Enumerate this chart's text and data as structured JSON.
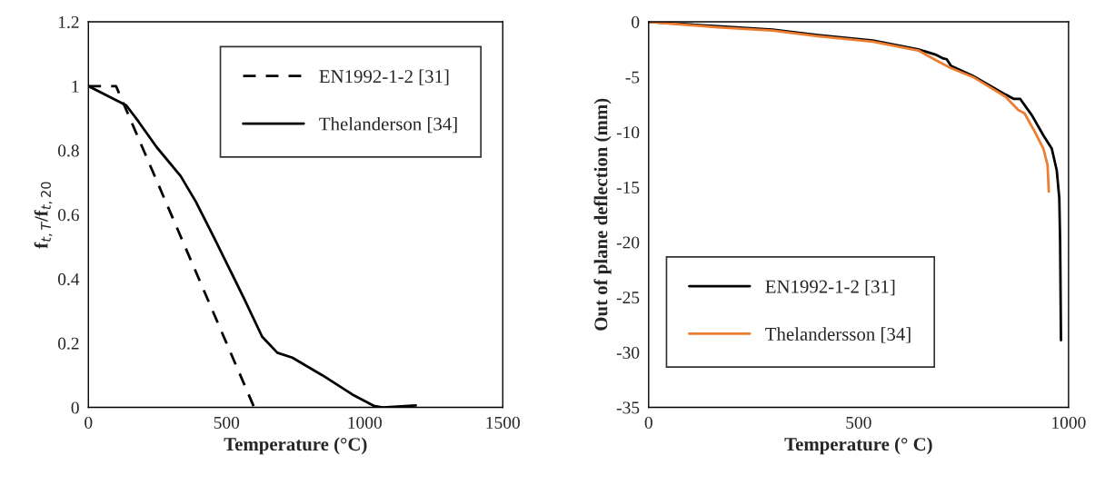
{
  "chart_data": [
    {
      "type": "line",
      "xlabel": "Temperature (°C)",
      "ylabel": "f$_{t,T}$/f$_{t,20}$",
      "xlim": [
        0,
        1500
      ],
      "xticks": [
        0,
        500,
        1000,
        1500
      ],
      "ylim": [
        0,
        1.2
      ],
      "yticks": [
        0,
        0.2,
        0.4,
        0.6,
        0.8,
        1,
        1.2
      ],
      "legend": "top right",
      "grid": false,
      "series": [
        {
          "name": "EN1992-1-2 [31]",
          "color": "#000000",
          "line_style": "dashed",
          "x": [
            0,
            100,
            600
          ],
          "values": [
            1,
            1,
            0
          ]
        },
        {
          "name": "Thelanderson [34]",
          "color": "#000000",
          "line_style": "solid",
          "x": [
            0,
            137,
            181,
            247,
            334,
            389,
            454,
            563,
            629,
            684,
            738,
            847,
            956,
            1033,
            1065,
            1185
          ],
          "values": [
            1,
            0.94,
            0.89,
            0.81,
            0.72,
            0.64,
            0.53,
            0.34,
            0.22,
            0.17,
            0.155,
            0.1,
            0.04,
            0.005,
            0,
            0.006
          ]
        }
      ]
    },
    {
      "type": "line",
      "xlabel": "Temperature (° C)",
      "ylabel": "Out of plane deflection (mm)",
      "xlim": [
        0,
        1000
      ],
      "xticks": [
        0,
        500,
        1000
      ],
      "ylim": [
        -35,
        0
      ],
      "yticks": [
        -35,
        -30,
        -25,
        -20,
        -15,
        -10,
        -5,
        0
      ],
      "legend": "bottom left",
      "grid": false,
      "series": [
        {
          "name": "EN1992-1-2 [31]",
          "color": "#000000",
          "line_style": "solid",
          "x": [
            0,
            165,
            295,
            403,
            534,
            642,
            685,
            700,
            710,
            720,
            772,
            850,
            870,
            885,
            913,
            940,
            960,
            972,
            978,
            980,
            982
          ],
          "values": [
            0,
            -0.4,
            -0.7,
            -1.2,
            -1.7,
            -2.5,
            -3.0,
            -3.3,
            -3.4,
            -4.0,
            -4.9,
            -6.6,
            -7.0,
            -7.0,
            -8.5,
            -10.3,
            -11.5,
            -13.5,
            -16,
            -20,
            -28.9
          ]
        },
        {
          "name": "Thelandersson [34]",
          "color": "#ed7d31",
          "line_style": "solid",
          "x": [
            0,
            165,
            295,
            403,
            534,
            642,
            690,
            720,
            772,
            850,
            880,
            895,
            920,
            940,
            950,
            953
          ],
          "values": [
            0,
            -0.5,
            -0.8,
            -1.3,
            -1.8,
            -2.6,
            -3.6,
            -4.2,
            -5.0,
            -6.8,
            -8.0,
            -8.3,
            -10,
            -11.5,
            -13,
            -15.4
          ]
        }
      ]
    }
  ]
}
